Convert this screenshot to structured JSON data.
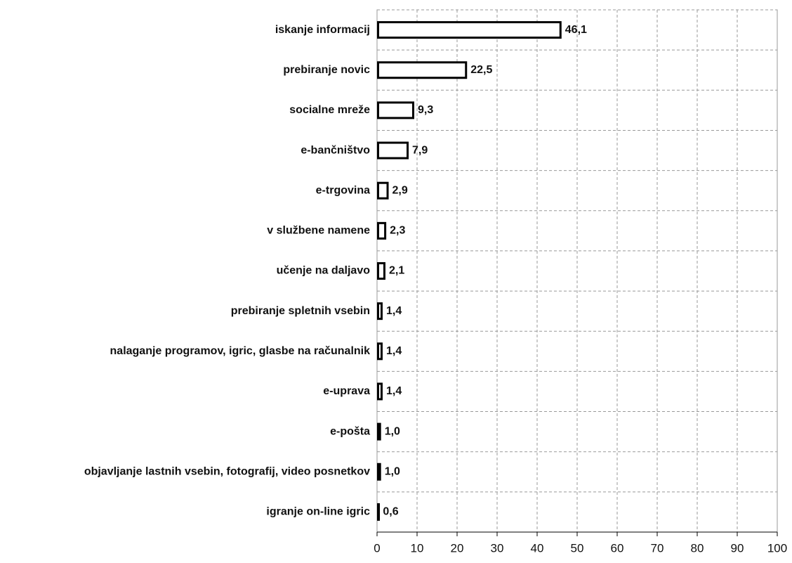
{
  "chart_data": {
    "type": "hbar",
    "categories": [
      "iskanje informacij",
      "prebiranje novic",
      "socialne mreže",
      "e-bančništvo",
      "e-trgovina",
      "v službene namene",
      "učenje na daljavo",
      "prebiranje spletnih vsebin",
      "nalaganje programov, igric, glasbe na računalnik",
      "e-uprava",
      "e-pošta",
      "objavljanje lastnih vsebin, fotografij, video posnetkov",
      "igranje on-line igric"
    ],
    "values": [
      46.1,
      22.5,
      9.3,
      7.9,
      2.9,
      2.3,
      2.1,
      1.4,
      1.4,
      1.4,
      1.0,
      1.0,
      0.6
    ],
    "value_labels": [
      "46,1",
      "22,5",
      "9,3",
      "7,9",
      "2,9",
      "2,3",
      "2,1",
      "1,4",
      "1,4",
      "1,4",
      "1,0",
      "1,0",
      "0,6"
    ],
    "color": "#000000",
    "xlim": [
      0,
      100
    ],
    "xticks": [
      0,
      10,
      20,
      30,
      40,
      50,
      60,
      70,
      80,
      90,
      100
    ],
    "grid": true
  }
}
